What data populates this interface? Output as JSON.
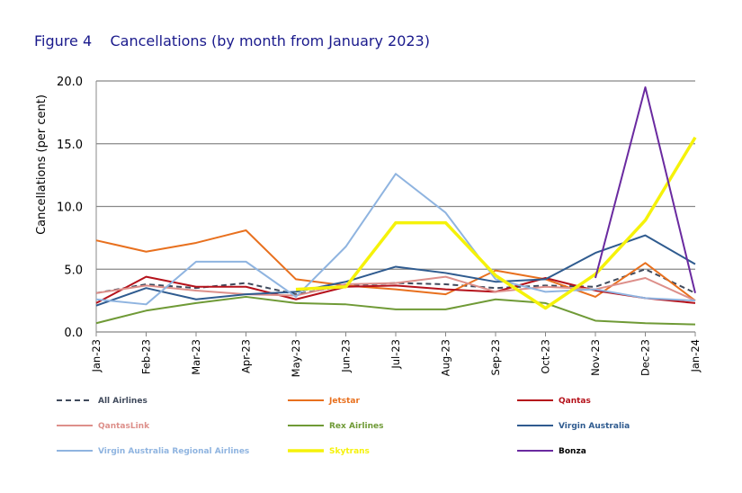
{
  "chart_data": {
    "type": "line",
    "title": "Figure 4    Cancellations (by month from January 2023)",
    "ylabel": "Cancellations (per cent)",
    "xlabel": "",
    "ylim": [
      0,
      20
    ],
    "yticks": [
      "0.0",
      "5.0",
      "10.0",
      "15.0",
      "20.0"
    ],
    "grid": true,
    "legend_position": "bottom",
    "categories": [
      "Jan-23",
      "Feb-23",
      "Mar-23",
      "Apr-23",
      "May-23",
      "Jun-23",
      "Jul-23",
      "Aug-23",
      "Sep-23",
      "Oct-23",
      "Nov-23",
      "Dec-23",
      "Jan-24"
    ],
    "series": [
      {
        "name": "All Airlines",
        "color": "#404a5c",
        "dashed": true,
        "values": [
          3.1,
          3.8,
          3.5,
          3.9,
          3.0,
          3.7,
          3.9,
          3.8,
          3.5,
          3.7,
          3.6,
          5.0,
          3.1
        ]
      },
      {
        "name": "Jetstar",
        "color": "#e8701e",
        "values": [
          7.3,
          6.4,
          7.1,
          8.1,
          4.2,
          3.7,
          3.4,
          3.0,
          4.9,
          4.2,
          2.8,
          5.5,
          2.5
        ]
      },
      {
        "name": "Qantas",
        "color": "#b5121b",
        "values": [
          2.3,
          4.4,
          3.6,
          3.6,
          2.6,
          3.6,
          3.7,
          3.4,
          3.2,
          4.3,
          3.3,
          2.7,
          2.3
        ]
      },
      {
        "name": "QantasLink",
        "color": "#dd8f8a",
        "values": [
          3.1,
          3.7,
          3.3,
          3.0,
          2.9,
          3.8,
          3.9,
          4.4,
          3.2,
          3.6,
          3.4,
          4.3,
          2.5
        ]
      },
      {
        "name": "Rex Airlines",
        "color": "#6f9a36",
        "values": [
          0.7,
          1.7,
          2.3,
          2.8,
          2.3,
          2.2,
          1.8,
          1.8,
          2.6,
          2.3,
          0.9,
          0.7,
          0.6
        ]
      },
      {
        "name": "Virgin Australia",
        "color": "#2f5b8f",
        "values": [
          2.1,
          3.5,
          2.6,
          3.0,
          3.2,
          4.0,
          5.2,
          4.7,
          4.0,
          4.2,
          6.3,
          7.7,
          5.4
        ]
      },
      {
        "name": "Virgin Australia Regional Airlines",
        "color": "#8fb4e0",
        "values": [
          2.6,
          2.2,
          5.6,
          5.6,
          2.8,
          6.8,
          12.6,
          9.5,
          4.2,
          3.2,
          3.4,
          2.7,
          2.5
        ]
      },
      {
        "name": "Skytrans",
        "color": "#f5f20a",
        "width": 3.5,
        "values": [
          null,
          null,
          null,
          null,
          3.4,
          3.6,
          8.7,
          8.7,
          4.5,
          1.9,
          4.6,
          8.9,
          15.5
        ]
      },
      {
        "name": "Bonza",
        "color": "#6a2aa0",
        "values": [
          null,
          null,
          null,
          null,
          null,
          null,
          null,
          null,
          null,
          null,
          4.3,
          19.5,
          3.1
        ]
      }
    ]
  }
}
